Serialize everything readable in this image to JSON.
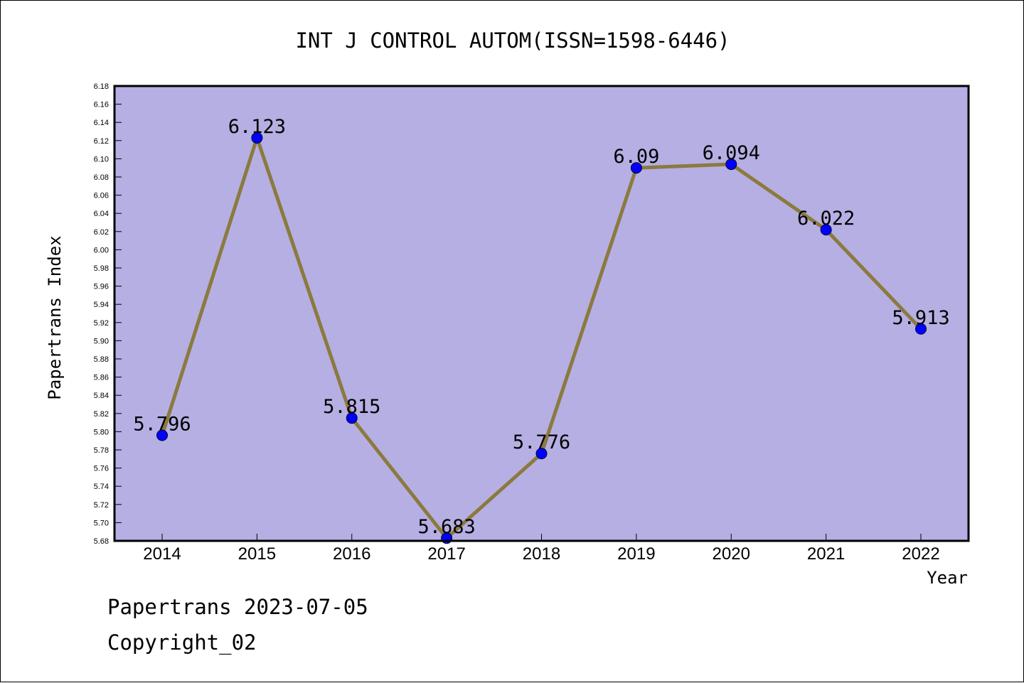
{
  "chart_data": {
    "type": "line",
    "title": "INT J CONTROL AUTOM(ISSN=1598-6446)",
    "xlabel": "Year",
    "ylabel": "Papertrans Index",
    "categories": [
      "2014",
      "2015",
      "2016",
      "2017",
      "2018",
      "2019",
      "2020",
      "2021",
      "2022"
    ],
    "series": [
      {
        "values": [
          5.796,
          6.123,
          5.815,
          5.683,
          5.776,
          6.09,
          6.094,
          6.022,
          5.913
        ],
        "data_labels": [
          "5.796",
          "6.123",
          "5.815",
          "5.683",
          "5.776",
          "6.09",
          "6.094",
          "6.022",
          "5.913"
        ]
      }
    ],
    "ylim": [
      5.68,
      6.18
    ],
    "ytick_step": 0.02,
    "grid": false,
    "colors": {
      "plot_background": "#b5afe3",
      "line": "#8b7a3e",
      "marker": "#0000ff"
    }
  },
  "footer": {
    "line1": "Papertrans 2023-07-05",
    "line2": "Copyright_02"
  }
}
